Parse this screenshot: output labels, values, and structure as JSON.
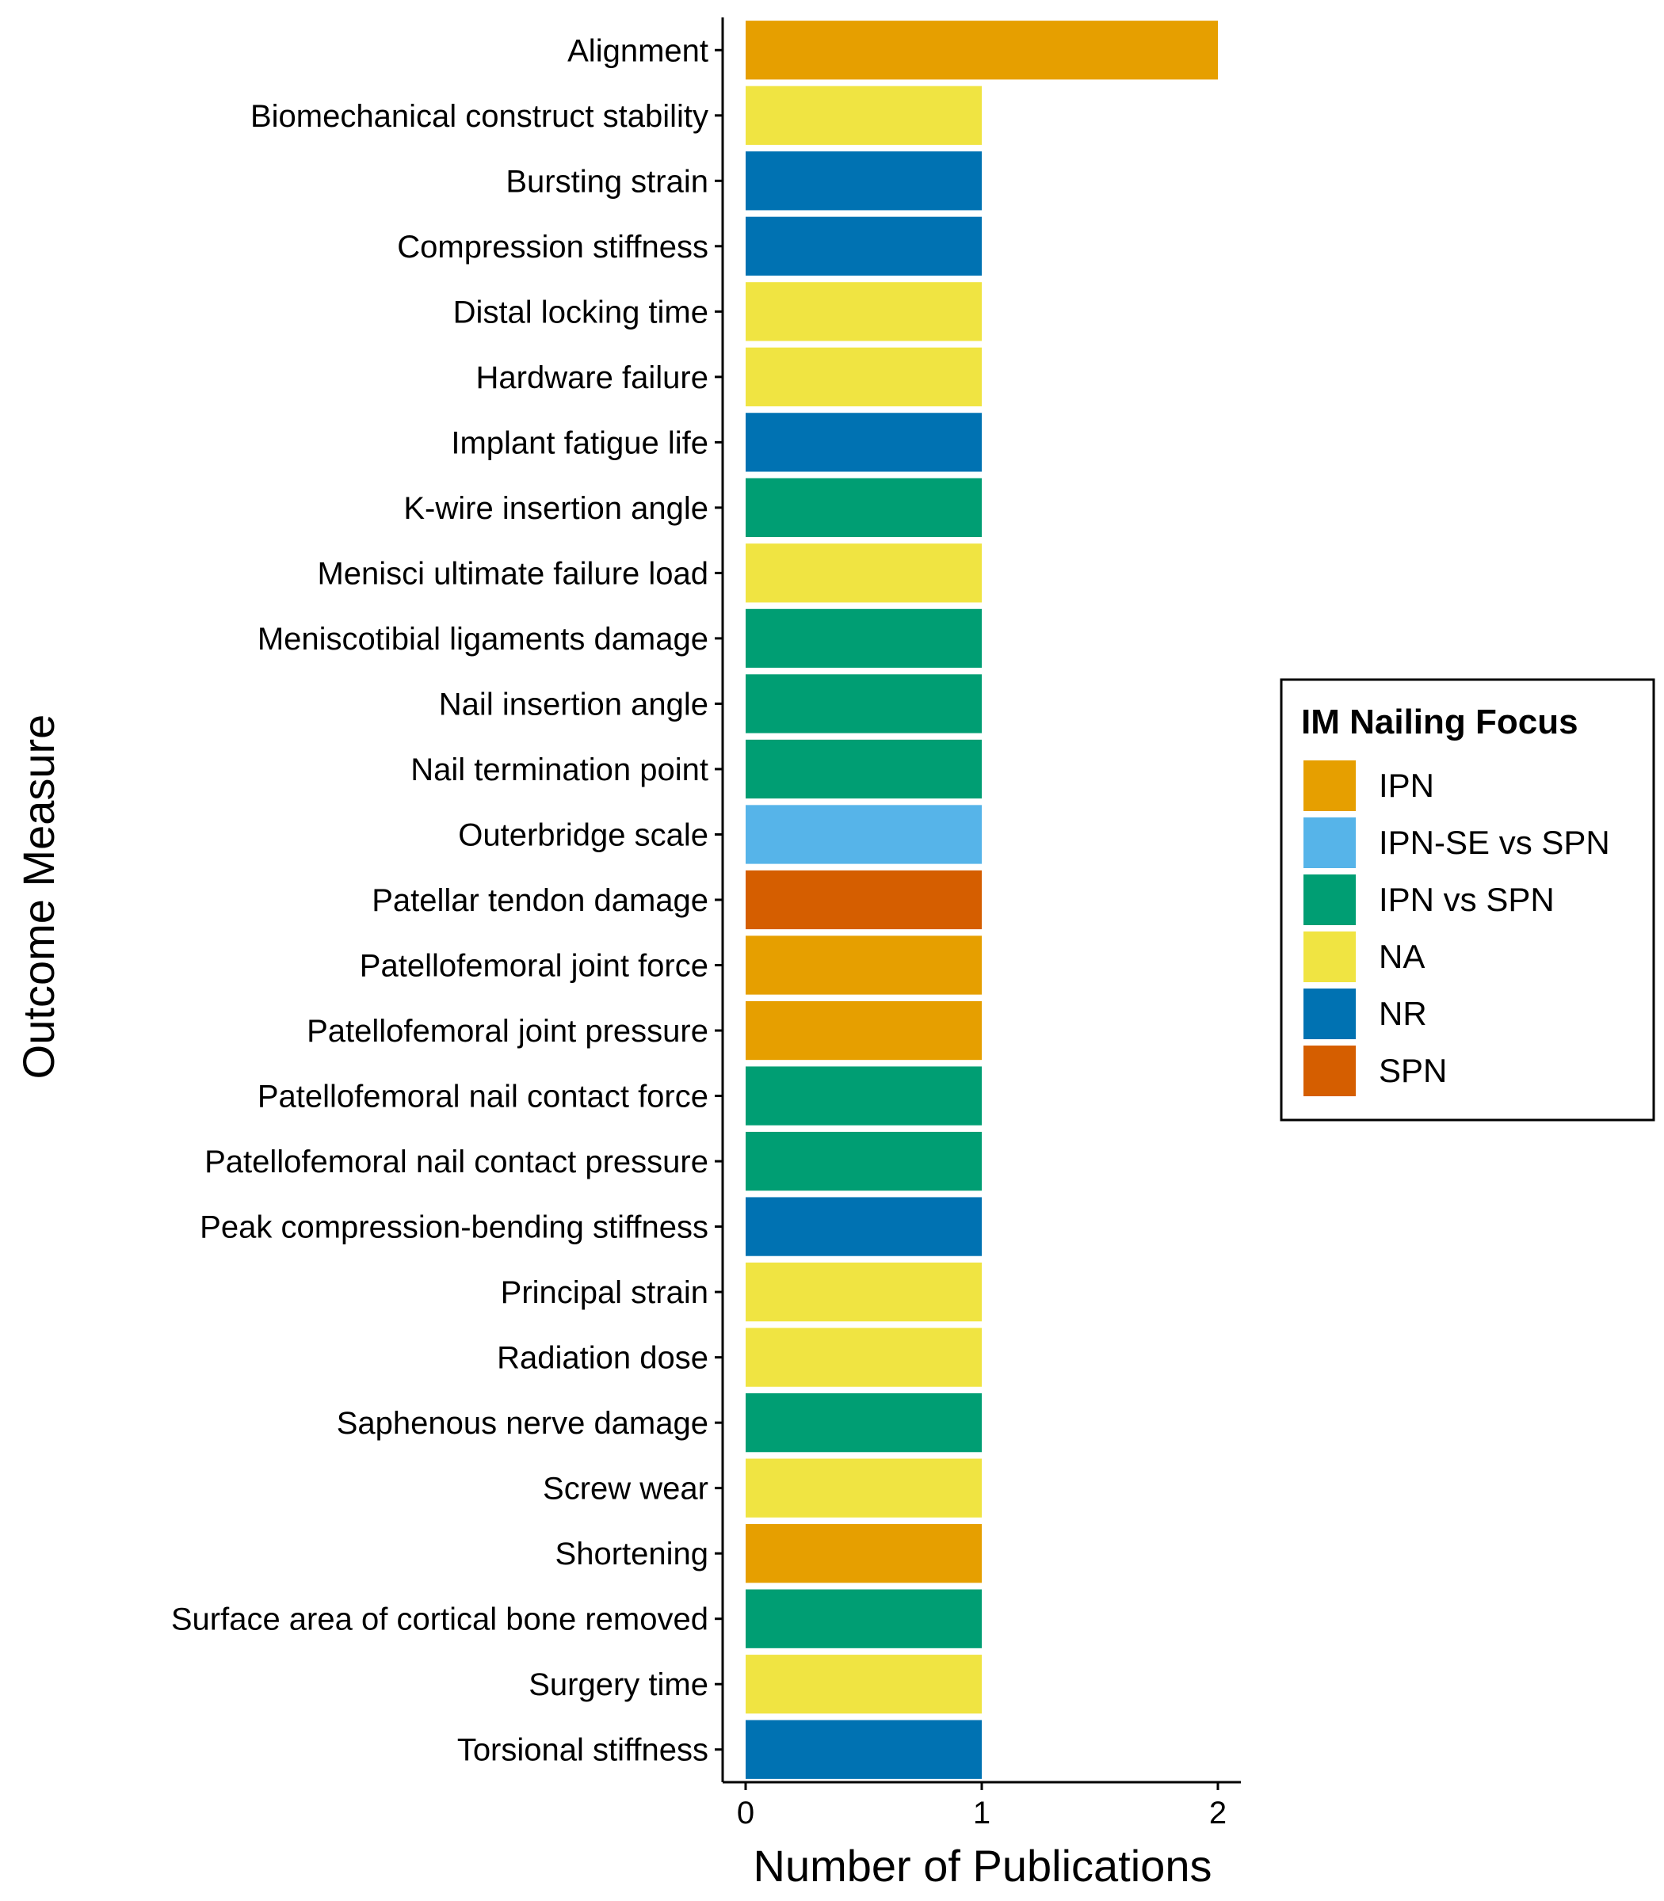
{
  "chart_data": {
    "type": "bar",
    "orientation": "horizontal",
    "xlabel": "Number of Publications",
    "ylabel": "Outcome Measure",
    "xlim": [
      0,
      2
    ],
    "xticks": [
      0,
      1,
      2
    ],
    "grid": false,
    "legend": {
      "title": "IM Nailing Focus",
      "placement": "right",
      "entries": [
        {
          "name": "IPN",
          "color": "#E69F00"
        },
        {
          "name": "IPN-SE vs SPN",
          "color": "#56B4E9"
        },
        {
          "name": "IPN vs SPN",
          "color": "#009E73"
        },
        {
          "name": "NA",
          "color": "#F0E442"
        },
        {
          "name": "NR",
          "color": "#0072B2"
        },
        {
          "name": "SPN",
          "color": "#D55E00"
        }
      ]
    },
    "categories": [
      "Alignment",
      "Biomechanical construct stability",
      "Bursting strain",
      "Compression stiffness",
      "Distal locking time",
      "Hardware failure",
      "Implant fatigue life",
      "K-wire insertion angle",
      "Menisci ultimate failure load",
      "Meniscotibial ligaments damage",
      "Nail insertion angle",
      "Nail termination point",
      "Outerbridge scale",
      "Patellar tendon damage",
      "Patellofemoral joint force",
      "Patellofemoral joint pressure",
      "Patellofemoral nail contact force",
      "Patellofemoral nail contact pressure",
      "Peak compression-bending stiffness",
      "Principal strain",
      "Radiation dose",
      "Saphenous nerve damage",
      "Screw wear",
      "Shortening",
      "Surface area of cortical bone removed",
      "Surgery time",
      "Torsional stiffness"
    ],
    "values": [
      2,
      1,
      1,
      1,
      1,
      1,
      1,
      1,
      1,
      1,
      1,
      1,
      1,
      1,
      1,
      1,
      1,
      1,
      1,
      1,
      1,
      1,
      1,
      1,
      1,
      1,
      1
    ],
    "groups": [
      "IPN",
      "NA",
      "NR",
      "NR",
      "NA",
      "NA",
      "NR",
      "IPN vs SPN",
      "NA",
      "IPN vs SPN",
      "IPN vs SPN",
      "IPN vs SPN",
      "IPN-SE vs SPN",
      "SPN",
      "IPN",
      "IPN",
      "IPN vs SPN",
      "IPN vs SPN",
      "NR",
      "NA",
      "NA",
      "IPN vs SPN",
      "NA",
      "IPN",
      "IPN vs SPN",
      "NA",
      "NR"
    ]
  }
}
